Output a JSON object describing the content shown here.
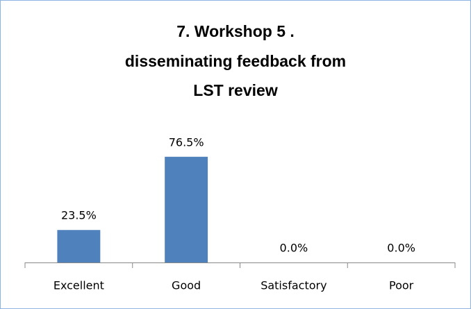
{
  "chart_data": {
    "type": "bar",
    "title": [
      "7. Workshop 5 .",
      "disseminating feedback from",
      "LST review"
    ],
    "categories": [
      "Excellent",
      "Good",
      "Satisfactory",
      "Poor"
    ],
    "values": [
      23.5,
      76.5,
      0,
      0
    ],
    "value_labels": [
      "23.5%",
      "76.5%",
      "0.0%",
      "0.0%"
    ],
    "color": "#4f81bd",
    "ylim": [
      0,
      100
    ]
  }
}
